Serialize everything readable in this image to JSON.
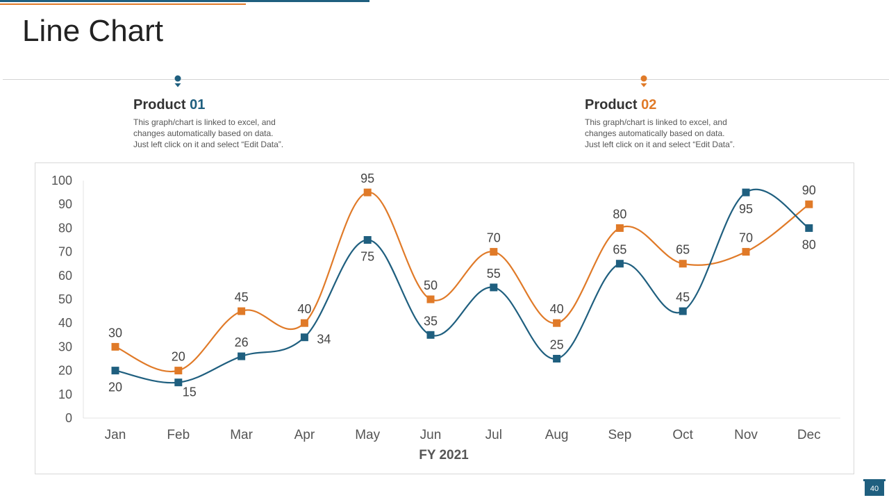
{
  "slide": {
    "title": "Line Chart",
    "page_number": "40"
  },
  "products": [
    {
      "label": "Product ",
      "number": "01",
      "color": "#1f5f7f",
      "description": [
        "This graph/chart is linked to excel, and",
        "changes automatically based on data.",
        "Just left click on it and select “Edit Data”."
      ]
    },
    {
      "label": "Product ",
      "number": "02",
      "color": "#e07a28",
      "description": [
        "This graph/chart is linked to excel, and",
        "changes automatically based on data.",
        "Just left click on it and select “Edit Data”."
      ]
    }
  ],
  "chart_data": {
    "type": "line",
    "categories": [
      "Jan",
      "Feb",
      "Mar",
      "Apr",
      "May",
      "Jun",
      "Jul",
      "Aug",
      "Sep",
      "Oct",
      "Nov",
      "Dec"
    ],
    "series": [
      {
        "values": [
          20,
          15,
          26,
          34,
          75,
          35,
          55,
          25,
          65,
          45,
          95,
          80
        ],
        "color": "#1f5f7f"
      },
      {
        "values": [
          30,
          20,
          45,
          40,
          95,
          50,
          70,
          40,
          80,
          65,
          70,
          90
        ],
        "color": "#e07a28"
      }
    ],
    "xlabel": "FY 2021",
    "ylabel": "",
    "ylim": [
      0,
      100
    ],
    "yticks": [
      "0",
      "10",
      "20",
      "30",
      "40",
      "50",
      "60",
      "70",
      "80",
      "90",
      "100"
    ],
    "grid": false,
    "legend": "none"
  }
}
